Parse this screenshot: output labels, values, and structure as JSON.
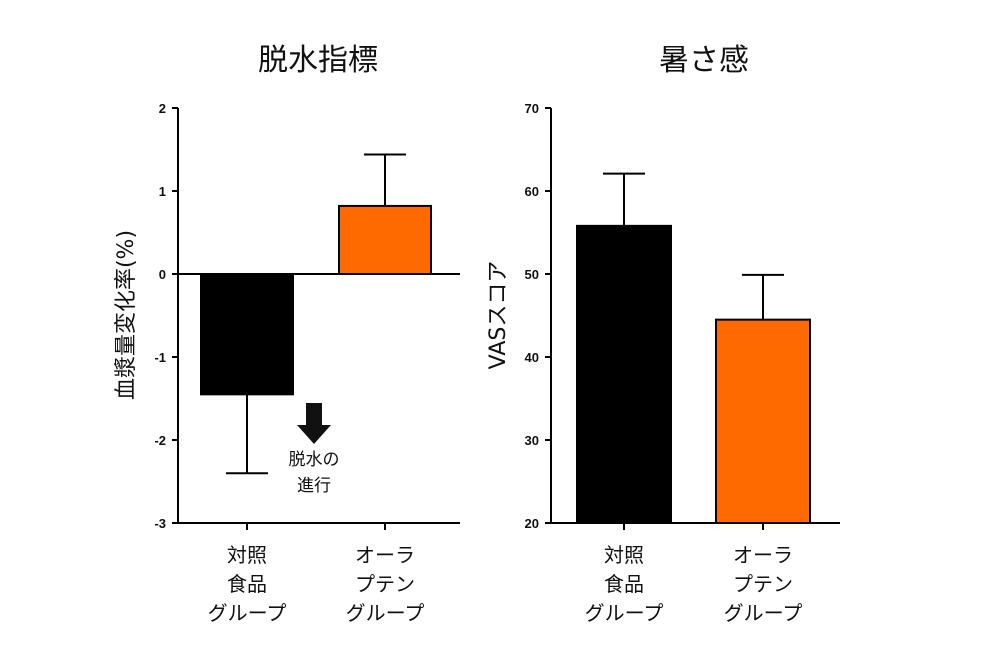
{
  "chart_data": [
    {
      "type": "bar",
      "title": "脱水指標",
      "ylabel": "血漿量変化率(%)",
      "ylim": [
        -3,
        2
      ],
      "yticks": [
        "2",
        "1",
        "0",
        "-1",
        "-2",
        "-3"
      ],
      "categories": [
        {
          "lines": [
            "対照",
            "食品",
            "グループ"
          ]
        },
        {
          "lines": [
            "オーラ",
            "プテン",
            "グループ"
          ]
        }
      ],
      "values": [
        -1.45,
        0.82
      ],
      "errors": [
        0.95,
        0.62
      ],
      "colors": [
        "#000000",
        "#ff6a00"
      ],
      "annotation": {
        "lines": [
          "脱水の",
          "進行"
        ],
        "icon": "down-arrow-icon"
      }
    },
    {
      "type": "bar",
      "title": "暑さ感",
      "ylabel": "VASスコア",
      "ylim": [
        20,
        70
      ],
      "yticks": [
        "70",
        "60",
        "50",
        "40",
        "30",
        "20"
      ],
      "categories": [
        {
          "lines": [
            "対照",
            "食品",
            "グループ"
          ]
        },
        {
          "lines": [
            "オーラ",
            "プテン",
            "グループ"
          ]
        }
      ],
      "values": [
        55.8,
        44.5
      ],
      "errors": [
        6.3,
        5.4
      ],
      "colors": [
        "#000000",
        "#ff6a00"
      ]
    }
  ]
}
